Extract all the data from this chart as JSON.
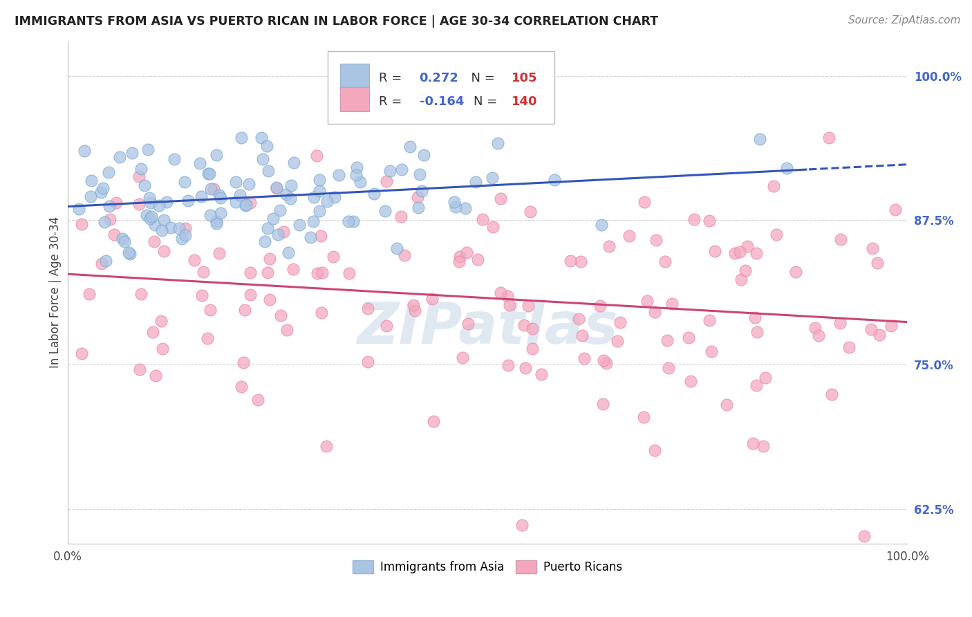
{
  "title": "IMMIGRANTS FROM ASIA VS PUERTO RICAN IN LABOR FORCE | AGE 30-34 CORRELATION CHART",
  "source": "Source: ZipAtlas.com",
  "ylabel": "In Labor Force | Age 30-34",
  "xlim": [
    0.0,
    1.0
  ],
  "ylim": [
    0.595,
    1.03
  ],
  "yticks": [
    0.625,
    0.75,
    0.875,
    1.0
  ],
  "ytick_labels": [
    "62.5%",
    "75.0%",
    "87.5%",
    "100.0%"
  ],
  "xtick_labels": [
    "0.0%",
    "100.0%"
  ],
  "blue_R": 0.272,
  "blue_N": 105,
  "pink_R": -0.164,
  "pink_N": 140,
  "blue_color": "#aac4e4",
  "pink_color": "#f4a8be",
  "blue_edge": "#7aaad4",
  "pink_edge": "#e888a8",
  "blue_line_color": "#3355bb",
  "pink_line_color": "#cc4477",
  "legend_blue_label": "Immigrants from Asia",
  "legend_pink_label": "Puerto Ricans",
  "watermark": "ZIPatlas",
  "background_color": "#ffffff",
  "grid_color": "#cccccc",
  "R_color": "#4466cc",
  "N_color": "#cc3333",
  "title_color": "#222222",
  "ylabel_color": "#444444",
  "ytick_color": "#4466cc",
  "source_color": "#888888"
}
